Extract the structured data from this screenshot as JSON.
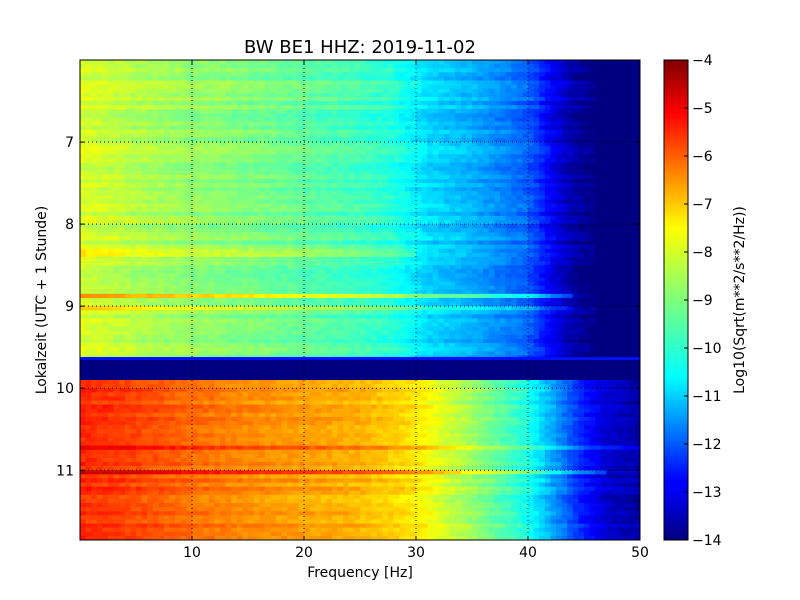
{
  "chart_data": {
    "type": "heatmap",
    "title": "BW BE1 HHZ: 2019-11-02",
    "xlabel": "Frequency [Hz]",
    "ylabel": "Lokalzeit (UTC + 1 Stunde)",
    "xlim": [
      0,
      50
    ],
    "ylim": [
      6.0,
      11.85
    ],
    "y_inverted": true,
    "grid": true,
    "x_ticks": [
      10,
      20,
      30,
      40,
      50
    ],
    "y_ticks": [
      7,
      8,
      9,
      10,
      11
    ],
    "colormap": "jet",
    "colorbar": {
      "label": "Log10(Sqrt(m**2/s**2/Hz))",
      "range": [
        -14,
        -4
      ],
      "ticks": [
        -4,
        -5,
        -6,
        -7,
        -8,
        -9,
        -10,
        -11,
        -12,
        -13,
        -14
      ]
    },
    "segments": [
      {
        "name": "",
        "time_range": [
          6.0,
          9.65
        ],
        "frequency_hz": [
          0,
          5,
          10,
          15,
          20,
          25,
          28,
          31,
          35,
          40,
          42,
          44,
          46,
          50
        ],
        "log10_amplitude": [
          -8.1,
          -8.5,
          -8.8,
          -9.0,
          -9.3,
          -9.6,
          -9.9,
          -10.6,
          -11.0,
          -11.8,
          -12.8,
          -13.6,
          -14,
          -14
        ]
      },
      {
        "name": "",
        "time_range": [
          9.65,
          9.9
        ],
        "frequency_hz": [
          0,
          50
        ],
        "log10_amplitude": [
          -14,
          -14
        ]
      },
      {
        "name": "",
        "time_range": [
          9.9,
          11.85
        ],
        "frequency_hz": [
          0,
          5,
          10,
          15,
          20,
          25,
          30,
          32,
          35,
          40,
          43,
          45,
          47,
          50
        ],
        "log10_amplitude": [
          -5.6,
          -5.9,
          -6.3,
          -6.6,
          -6.8,
          -7.0,
          -7.5,
          -8.0,
          -8.7,
          -10.0,
          -11.5,
          -12.5,
          -13.2,
          -13.6
        ]
      }
    ],
    "bright_bands": [
      {
        "time": 8.35,
        "f_max": 30,
        "delta": 0.5
      },
      {
        "time": 8.88,
        "f_max": 44,
        "delta": 1.2
      },
      {
        "time": 9.02,
        "f_max": 44,
        "delta": 0.6
      },
      {
        "time": 9.94,
        "f_max": 50,
        "delta": 0
      },
      {
        "time": 10.72,
        "f_max": 50,
        "delta": 0.7
      },
      {
        "time": 11.02,
        "f_max": 47,
        "delta": 0.9
      }
    ]
  }
}
